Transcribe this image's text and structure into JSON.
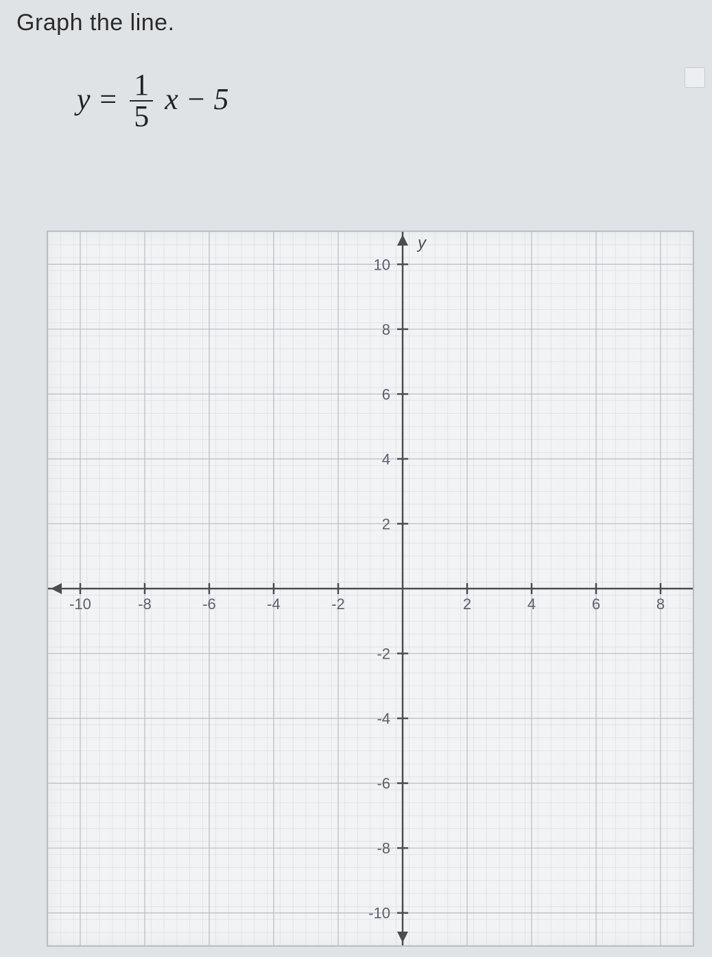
{
  "instruction": "Graph the line.",
  "equation": {
    "lhs": "y",
    "frac_num": "1",
    "frac_den": "5",
    "variable": "x",
    "constant": "5"
  },
  "chart": {
    "type": "coordinate-grid",
    "xlim": [
      -11,
      9
    ],
    "ylim": [
      -11,
      11
    ],
    "xtick_step_major": 2,
    "ytick_step_major": 2,
    "minor_per_major": 5,
    "x_labels": [
      "-10",
      "-8",
      "-6",
      "-4",
      "-2",
      "2",
      "4",
      "6",
      "8"
    ],
    "y_labels_pos": [
      "2",
      "4",
      "6",
      "8",
      "10"
    ],
    "y_labels_neg": [
      "-2",
      "-4",
      "-6",
      "-8",
      "-10"
    ],
    "y_axis_label": "y",
    "background_color": "#f2f3f5",
    "major_grid_color": "#b7bcc2",
    "minor_grid_color": "#d7dadd",
    "axis_color": "#4a4d50",
    "tick_label_color": "#59606a",
    "tick_label_fontsize": 22,
    "axis_linewidth": 2.5,
    "major_grid_linewidth": 1.2,
    "minor_grid_linewidth": 0.6
  }
}
